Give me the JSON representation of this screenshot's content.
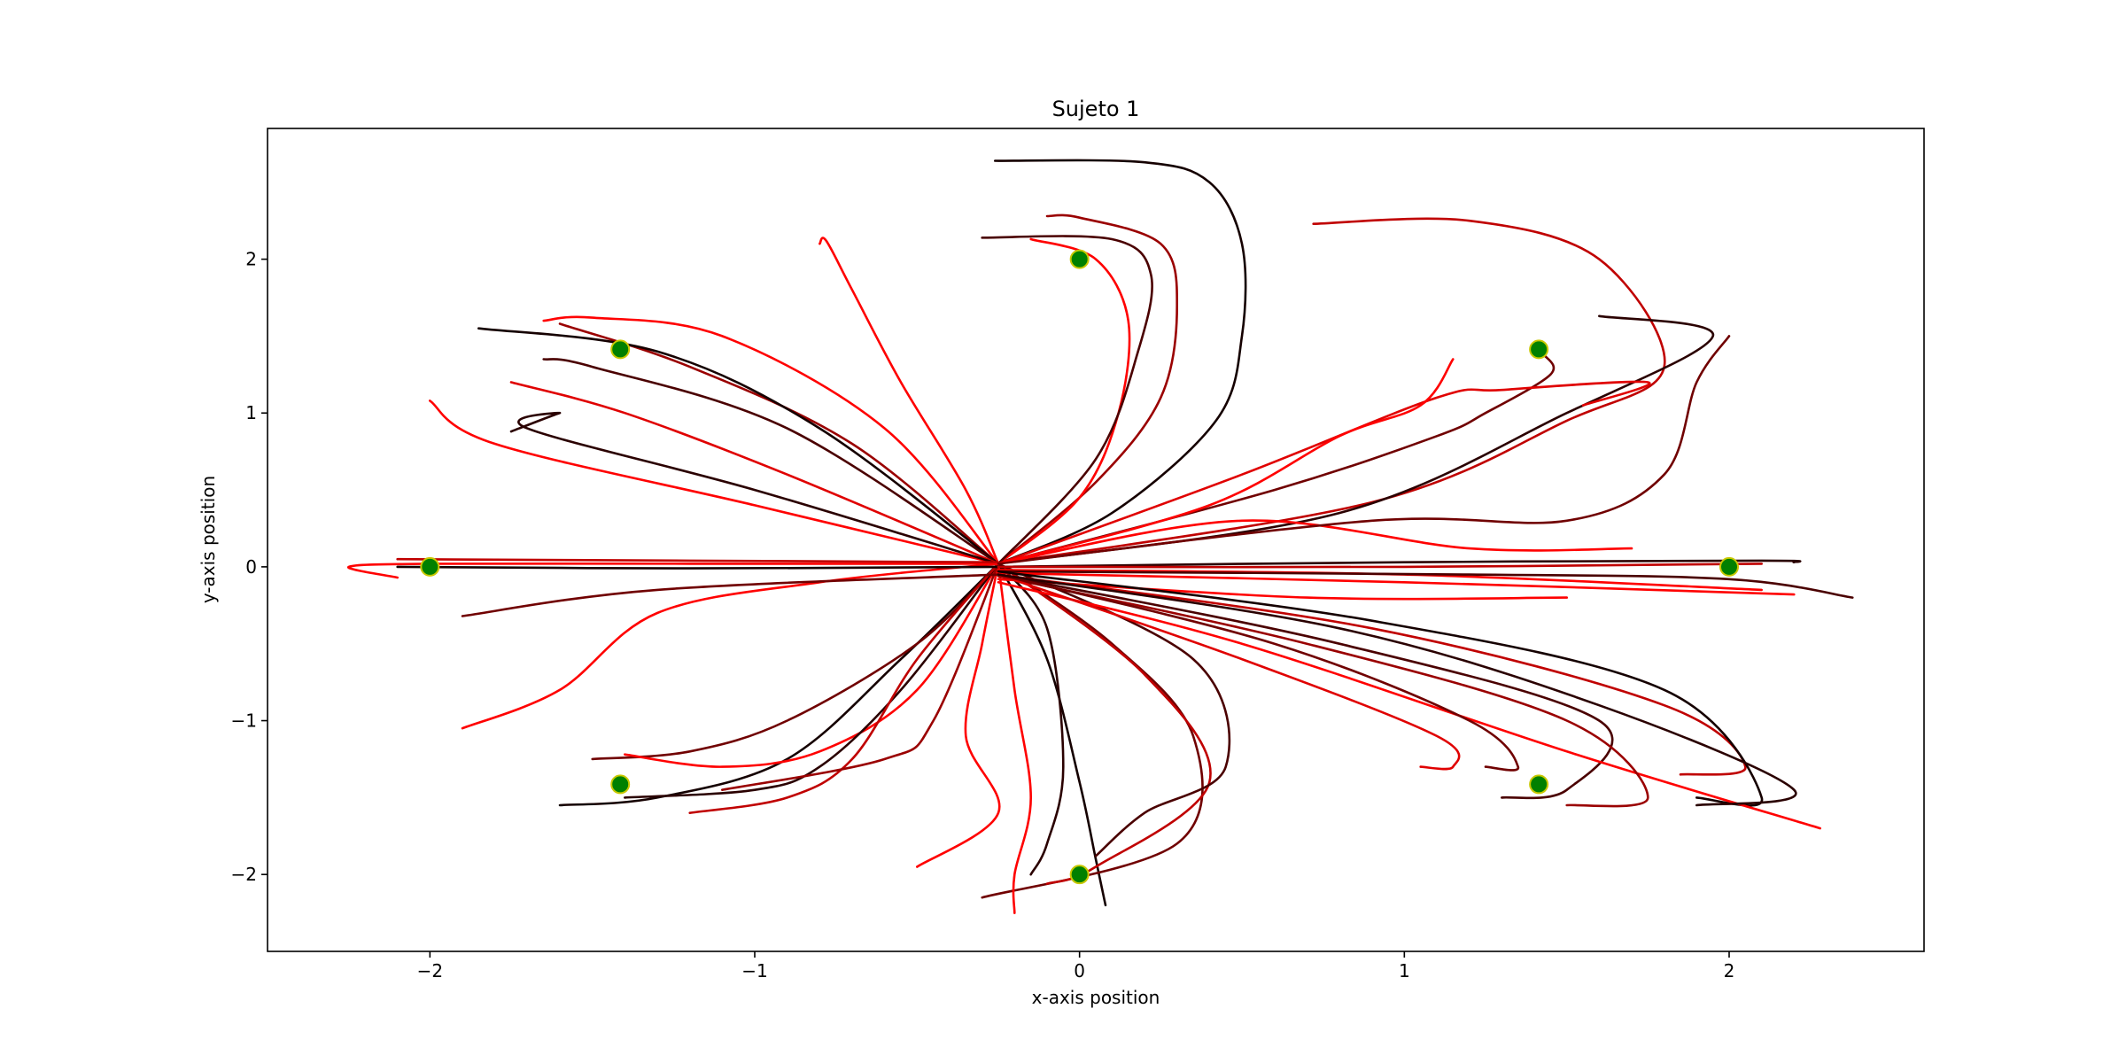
{
  "chart_data": {
    "type": "line",
    "title": "Sujeto 1",
    "xlabel": "x-axis position",
    "ylabel": "y-axis position",
    "xlim": [
      -2.5,
      2.6
    ],
    "ylim": [
      -2.5,
      2.85
    ],
    "xticks": [
      -2,
      -1,
      0,
      1,
      2
    ],
    "yticks": [
      -2,
      -1,
      0,
      1,
      2
    ],
    "xtick_labels": [
      "−2",
      "−1",
      "0",
      "1",
      "2"
    ],
    "ytick_labels": [
      "−2",
      "−1",
      "0",
      "1",
      "2"
    ],
    "grid": false,
    "legend": "none",
    "colors": {
      "trajectory_palette": [
        "#ff0000",
        "#e00000",
        "#c00000",
        "#9a0000",
        "#700000",
        "#4a0000",
        "#2a0000",
        "#150000"
      ],
      "target_fill": "#008000",
      "target_edge": "#c8c800"
    },
    "targets": [
      {
        "x": 0,
        "y": 2
      },
      {
        "x": 1.414,
        "y": 1.414
      },
      {
        "x": 2,
        "y": 0
      },
      {
        "x": 1.414,
        "y": -1.414
      },
      {
        "x": 0,
        "y": -2
      },
      {
        "x": -1.414,
        "y": -1.414
      },
      {
        "x": -2,
        "y": 0
      },
      {
        "x": -1.414,
        "y": 1.414
      }
    ],
    "series": [
      {
        "color": "#150000",
        "points": [
          [
            -0.25,
            0.02
          ],
          [
            0.1,
            0.35
          ],
          [
            0.42,
            0.95
          ],
          [
            0.5,
            1.5
          ],
          [
            0.5,
            2.1
          ],
          [
            0.4,
            2.5
          ],
          [
            0.2,
            2.63
          ],
          [
            -0.26,
            2.64
          ]
        ]
      },
      {
        "color": "#9a0000",
        "points": [
          [
            -0.25,
            0.02
          ],
          [
            0.05,
            0.55
          ],
          [
            0.25,
            1.1
          ],
          [
            0.3,
            1.7
          ],
          [
            0.25,
            2.1
          ],
          [
            0.0,
            2.27
          ],
          [
            -0.1,
            2.28
          ]
        ]
      },
      {
        "color": "#ff0000",
        "points": [
          [
            -0.25,
            0.02
          ],
          [
            0.0,
            0.45
          ],
          [
            0.12,
            1.0
          ],
          [
            0.15,
            1.6
          ],
          [
            0.05,
            2.0
          ],
          [
            -0.15,
            2.13
          ]
        ]
      },
      {
        "color": "#4a0000",
        "points": [
          [
            -0.25,
            0.02
          ],
          [
            0.05,
            0.7
          ],
          [
            0.18,
            1.4
          ],
          [
            0.22,
            1.9
          ],
          [
            0.1,
            2.13
          ],
          [
            -0.3,
            2.14
          ]
        ]
      },
      {
        "color": "#ff0000",
        "points": [
          [
            -0.25,
            0.02
          ],
          [
            -0.35,
            0.5
          ],
          [
            -0.55,
            1.2
          ],
          [
            -0.7,
            1.8
          ],
          [
            -0.78,
            2.12
          ],
          [
            -0.8,
            2.1
          ]
        ]
      },
      {
        "color": "#700000",
        "points": [
          [
            -0.25,
            0.02
          ],
          [
            0.6,
            0.5
          ],
          [
            1.1,
            0.85
          ],
          [
            1.25,
            1.0
          ],
          [
            1.45,
            1.25
          ],
          [
            1.43,
            1.38
          ]
        ]
      },
      {
        "color": "#c00000",
        "points": [
          [
            -0.25,
            0.02
          ],
          [
            0.9,
            0.42
          ],
          [
            1.5,
            0.95
          ],
          [
            1.8,
            1.3
          ],
          [
            1.6,
            2.0
          ],
          [
            1.2,
            2.25
          ],
          [
            0.72,
            2.23
          ]
        ]
      },
      {
        "color": "#2a0000",
        "points": [
          [
            -0.25,
            0.02
          ],
          [
            0.8,
            0.35
          ],
          [
            1.5,
            1.0
          ],
          [
            1.95,
            1.5
          ],
          [
            1.6,
            1.63
          ]
        ]
      },
      {
        "color": "#e00000",
        "points": [
          [
            -0.25,
            0.02
          ],
          [
            0.5,
            0.6
          ],
          [
            1.1,
            1.1
          ],
          [
            1.3,
            1.15
          ],
          [
            1.75,
            1.2
          ],
          [
            1.55,
            1.05
          ]
        ]
      },
      {
        "color": "#ff0000",
        "points": [
          [
            -0.25,
            0.02
          ],
          [
            0.4,
            0.4
          ],
          [
            0.8,
            0.85
          ],
          [
            1.05,
            1.05
          ],
          [
            1.15,
            1.35
          ]
        ]
      },
      {
        "color": "#ff0000",
        "points": [
          [
            -0.25,
            0.02
          ],
          [
            -0.3,
            -0.5
          ],
          [
            -0.35,
            -1.1
          ],
          [
            -0.25,
            -1.6
          ],
          [
            -0.5,
            -1.95
          ]
        ]
      },
      {
        "color": "#150000",
        "points": [
          [
            -0.25,
            0.02
          ],
          [
            -0.1,
            -0.6
          ],
          [
            0.0,
            -1.4
          ],
          [
            0.05,
            -1.9
          ],
          [
            0.08,
            -2.2
          ]
        ]
      },
      {
        "color": "#700000",
        "points": [
          [
            -0.25,
            0.02
          ],
          [
            0.1,
            -0.5
          ],
          [
            0.35,
            -1.1
          ],
          [
            0.3,
            -1.8
          ],
          [
            -0.3,
            -2.15
          ]
        ]
      },
      {
        "color": "#ff0000",
        "points": [
          [
            -0.25,
            0.02
          ],
          [
            -0.2,
            -0.8
          ],
          [
            -0.15,
            -1.5
          ],
          [
            -0.2,
            -2.0
          ],
          [
            -0.2,
            -2.25
          ]
        ]
      },
      {
        "color": "#c00000",
        "points": [
          [
            -0.25,
            0.02
          ],
          [
            0.2,
            -0.7
          ],
          [
            0.4,
            -1.4
          ],
          [
            0.05,
            -1.95
          ],
          [
            -0.1,
            -2.06
          ]
        ]
      },
      {
        "color": "#2a0000",
        "points": [
          [
            -0.25,
            0.02
          ],
          [
            -0.1,
            -0.4
          ],
          [
            -0.05,
            -1.3
          ],
          [
            -0.1,
            -1.8
          ],
          [
            -0.15,
            -2.0
          ]
        ]
      },
      {
        "color": "#4a0000",
        "points": [
          [
            -0.25,
            0.02
          ],
          [
            0.35,
            -0.6
          ],
          [
            0.45,
            -1.3
          ],
          [
            0.2,
            -1.6
          ],
          [
            0.05,
            -1.88
          ]
        ]
      },
      {
        "color": "#150000",
        "points": [
          [
            -0.25,
            0.02
          ],
          [
            -0.55,
            -0.6
          ],
          [
            -0.9,
            -1.25
          ],
          [
            -1.3,
            -1.5
          ],
          [
            -1.6,
            -1.55
          ]
        ]
      },
      {
        "color": "#700000",
        "points": [
          [
            -0.25,
            0.02
          ],
          [
            -0.5,
            -0.5
          ],
          [
            -0.9,
            -1.0
          ],
          [
            -1.2,
            -1.2
          ],
          [
            -1.5,
            -1.25
          ]
        ]
      },
      {
        "color": "#ff0000",
        "points": [
          [
            -0.25,
            0.02
          ],
          [
            -0.5,
            -0.8
          ],
          [
            -0.8,
            -1.2
          ],
          [
            -1.1,
            -1.3
          ],
          [
            -1.4,
            -1.22
          ]
        ]
      },
      {
        "color": "#2a0000",
        "points": [
          [
            -0.25,
            0.02
          ],
          [
            -0.55,
            -0.8
          ],
          [
            -0.8,
            -1.3
          ],
          [
            -1.0,
            -1.45
          ],
          [
            -1.4,
            -1.5
          ]
        ]
      },
      {
        "color": "#c00000",
        "points": [
          [
            -0.25,
            0.02
          ],
          [
            -0.5,
            -0.6
          ],
          [
            -0.7,
            -1.25
          ],
          [
            -0.9,
            -1.5
          ],
          [
            -1.2,
            -1.6
          ]
        ]
      },
      {
        "color": "#9a0000",
        "points": [
          [
            -0.25,
            0.02
          ],
          [
            -0.45,
            -1.0
          ],
          [
            -0.6,
            -1.25
          ],
          [
            -1.1,
            -1.45
          ]
        ]
      },
      {
        "color": "#ff0000",
        "points": [
          [
            -0.25,
            0.02
          ],
          [
            -0.8,
            -0.1
          ],
          [
            -1.3,
            -0.3
          ],
          [
            -1.6,
            -0.8
          ],
          [
            -1.9,
            -1.05
          ]
        ]
      },
      {
        "color": "#ff0000",
        "points": [
          [
            -0.25,
            0.02
          ],
          [
            -1.0,
            0.4
          ],
          [
            -1.8,
            0.8
          ],
          [
            -2.0,
            1.08
          ]
        ]
      },
      {
        "color": "#ff0000",
        "points": [
          [
            -0.25,
            0.02
          ],
          [
            -0.6,
            0.9
          ],
          [
            -1.1,
            1.5
          ],
          [
            -1.5,
            1.62
          ],
          [
            -1.65,
            1.6
          ]
        ]
      },
      {
        "color": "#9a0000",
        "points": [
          [
            -0.25,
            0.02
          ],
          [
            -0.7,
            0.8
          ],
          [
            -1.2,
            1.3
          ],
          [
            -1.6,
            1.58
          ]
        ]
      },
      {
        "color": "#150000",
        "points": [
          [
            -0.25,
            0.02
          ],
          [
            -0.8,
            0.9
          ],
          [
            -1.3,
            1.4
          ],
          [
            -1.85,
            1.55
          ]
        ]
      },
      {
        "color": "#4a0000",
        "points": [
          [
            -0.25,
            0.02
          ],
          [
            -0.9,
            0.9
          ],
          [
            -1.5,
            1.3
          ],
          [
            -1.65,
            1.35
          ]
        ]
      },
      {
        "color": "#e00000",
        "points": [
          [
            -0.25,
            0.02
          ],
          [
            -0.9,
            0.6
          ],
          [
            -1.4,
            1.0
          ],
          [
            -1.75,
            1.2
          ]
        ]
      },
      {
        "color": "#2a0000",
        "points": [
          [
            -0.25,
            0.02
          ],
          [
            -1.0,
            0.5
          ],
          [
            -1.7,
            0.9
          ],
          [
            -1.6,
            1.0
          ],
          [
            -1.75,
            0.88
          ]
        ]
      },
      {
        "color": "#ff0000",
        "points": [
          [
            -0.25,
            0.02
          ],
          [
            -1.2,
            0.02
          ],
          [
            -2.0,
            0.02
          ],
          [
            -2.25,
            0.0
          ],
          [
            -2.1,
            -0.07
          ]
        ]
      },
      {
        "color": "#150000",
        "points": [
          [
            -0.25,
            0.0
          ],
          [
            -1.2,
            -0.01
          ],
          [
            -2.1,
            0.0
          ]
        ]
      },
      {
        "color": "#700000",
        "points": [
          [
            -0.25,
            -0.05
          ],
          [
            -1.3,
            -0.15
          ],
          [
            -1.9,
            -0.32
          ]
        ]
      },
      {
        "color": "#c00000",
        "points": [
          [
            -0.25,
            0.03
          ],
          [
            -1.2,
            0.04
          ],
          [
            -2.1,
            0.05
          ]
        ]
      },
      {
        "color": "#ff0000",
        "points": [
          [
            -0.25,
            -0.02
          ],
          [
            1.0,
            -0.05
          ],
          [
            2.1,
            -0.15
          ]
        ]
      },
      {
        "color": "#2a0000",
        "points": [
          [
            -0.25,
            0.0
          ],
          [
            1.0,
            0.03
          ],
          [
            2.1,
            0.04
          ],
          [
            2.2,
            0.03
          ]
        ]
      },
      {
        "color": "#4a0000",
        "points": [
          [
            -0.25,
            -0.03
          ],
          [
            1.2,
            -0.05
          ],
          [
            2.0,
            -0.08
          ],
          [
            2.38,
            -0.2
          ]
        ]
      },
      {
        "color": "#c00000",
        "points": [
          [
            -0.25,
            0.0
          ],
          [
            1.0,
            0.0
          ],
          [
            2.1,
            0.02
          ]
        ]
      },
      {
        "color": "#ff0000",
        "points": [
          [
            -0.25,
            -0.08
          ],
          [
            0.7,
            -0.2
          ],
          [
            1.5,
            -0.2
          ]
        ]
      },
      {
        "color": "#ff0000",
        "points": [
          [
            -0.25,
            -0.04
          ],
          [
            1.0,
            -0.1
          ],
          [
            2.2,
            -0.18
          ]
        ]
      },
      {
        "color": "#ff0000",
        "points": [
          [
            -0.25,
            0.02
          ],
          [
            0.5,
            0.3
          ],
          [
            1.2,
            0.12
          ],
          [
            1.7,
            0.12
          ]
        ]
      },
      {
        "color": "#700000",
        "points": [
          [
            -0.25,
            0.02
          ],
          [
            0.9,
            0.3
          ],
          [
            1.5,
            0.3
          ],
          [
            1.8,
            0.6
          ],
          [
            1.9,
            1.2
          ],
          [
            2.0,
            1.5
          ]
        ]
      },
      {
        "color": "#4a0000",
        "points": [
          [
            -0.25,
            -0.05
          ],
          [
            0.8,
            -0.5
          ],
          [
            1.6,
            -1.0
          ],
          [
            1.5,
            -1.45
          ],
          [
            1.3,
            -1.5
          ]
        ]
      },
      {
        "color": "#c00000",
        "points": [
          [
            -0.25,
            -0.05
          ],
          [
            0.9,
            -0.4
          ],
          [
            1.8,
            -0.9
          ],
          [
            2.05,
            -1.3
          ],
          [
            1.85,
            -1.35
          ]
        ]
      },
      {
        "color": "#150000",
        "points": [
          [
            -0.25,
            -0.03
          ],
          [
            0.9,
            -0.35
          ],
          [
            1.8,
            -0.8
          ],
          [
            2.1,
            -1.5
          ],
          [
            1.9,
            -1.5
          ]
        ]
      },
      {
        "color": "#ff0000",
        "points": [
          [
            -0.25,
            -0.1
          ],
          [
            0.5,
            -0.5
          ],
          [
            1.5,
            -1.2
          ],
          [
            2.28,
            -1.7
          ]
        ]
      },
      {
        "color": "#9a0000",
        "points": [
          [
            -0.25,
            -0.06
          ],
          [
            0.7,
            -0.5
          ],
          [
            1.5,
            -1.0
          ],
          [
            1.75,
            -1.5
          ],
          [
            1.5,
            -1.55
          ]
        ]
      },
      {
        "color": "#e00000",
        "points": [
          [
            -0.25,
            -0.05
          ],
          [
            0.5,
            -0.6
          ],
          [
            1.1,
            -1.1
          ],
          [
            1.15,
            -1.3
          ],
          [
            1.05,
            -1.3
          ]
        ]
      },
      {
        "color": "#700000",
        "points": [
          [
            -0.25,
            -0.05
          ],
          [
            0.6,
            -0.5
          ],
          [
            1.2,
            -1.0
          ],
          [
            1.35,
            -1.3
          ],
          [
            1.25,
            -1.3
          ]
        ]
      },
      {
        "color": "#2a0000",
        "points": [
          [
            -0.25,
            -0.05
          ],
          [
            0.8,
            -0.4
          ],
          [
            1.6,
            -0.9
          ],
          [
            2.2,
            -1.45
          ],
          [
            1.9,
            -1.55
          ]
        ]
      }
    ]
  }
}
